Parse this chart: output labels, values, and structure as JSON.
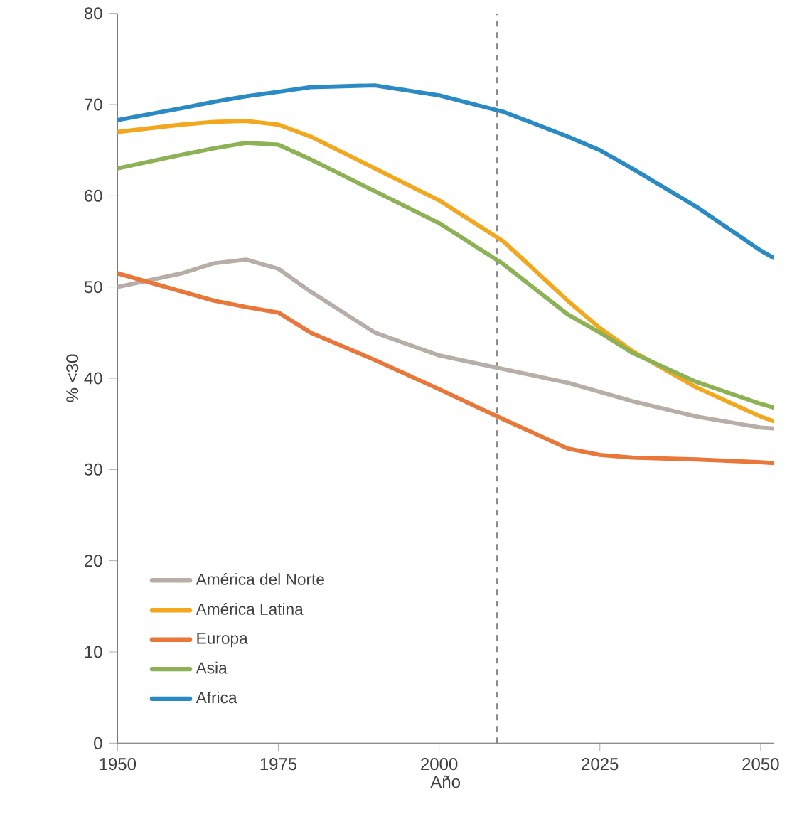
{
  "chart_data": {
    "type": "line",
    "xlabel": "Año",
    "ylabel": "% <30",
    "xlim": [
      1950,
      2052
    ],
    "ylim": [
      0,
      80
    ],
    "xticks": [
      1950,
      1975,
      2000,
      2025,
      2050
    ],
    "yticks": [
      0,
      10,
      20,
      30,
      40,
      50,
      60,
      70,
      80
    ],
    "x": [
      1950,
      1960,
      1965,
      1970,
      1975,
      1980,
      1990,
      2000,
      2010,
      2020,
      2025,
      2030,
      2040,
      2050,
      2052
    ],
    "legend": "bottom left",
    "marker": "none",
    "line_style": "solid",
    "ref_lines": [
      {
        "axis": "x",
        "value": 2009,
        "color": "#8c8c8c",
        "line_style": "dashed"
      }
    ],
    "series": [
      {
        "name": "América del Norte",
        "color": "#b8aea8",
        "values": [
          50,
          51.5,
          52.6,
          53,
          52,
          49.5,
          45,
          42.5,
          41,
          39.5,
          38.5,
          37.5,
          35.8,
          34.6,
          34.5
        ]
      },
      {
        "name": "América Latina",
        "color": "#f2a71d",
        "values": [
          67,
          67.8,
          68.1,
          68.2,
          67.8,
          66.5,
          63,
          59.5,
          55,
          48.5,
          45.5,
          43,
          39,
          35.8,
          35.3
        ]
      },
      {
        "name": "Europa",
        "color": "#e9773a",
        "values": [
          51.5,
          49.5,
          48.5,
          47.8,
          47.2,
          45,
          42,
          38.8,
          35.5,
          32.3,
          31.6,
          31.3,
          31.1,
          30.8,
          30.7
        ]
      },
      {
        "name": "Asia",
        "color": "#8db255",
        "values": [
          63,
          64.5,
          65.2,
          65.8,
          65.6,
          64,
          60.5,
          57,
          52.5,
          47,
          45,
          42.8,
          39.6,
          37.2,
          36.8
        ]
      },
      {
        "name": "Africa",
        "color": "#2a8ac4",
        "values": [
          68.3,
          69.6,
          70.3,
          70.9,
          71.4,
          71.9,
          72.1,
          71,
          69.2,
          66.5,
          65,
          63,
          58.8,
          54,
          53.2
        ]
      }
    ]
  }
}
